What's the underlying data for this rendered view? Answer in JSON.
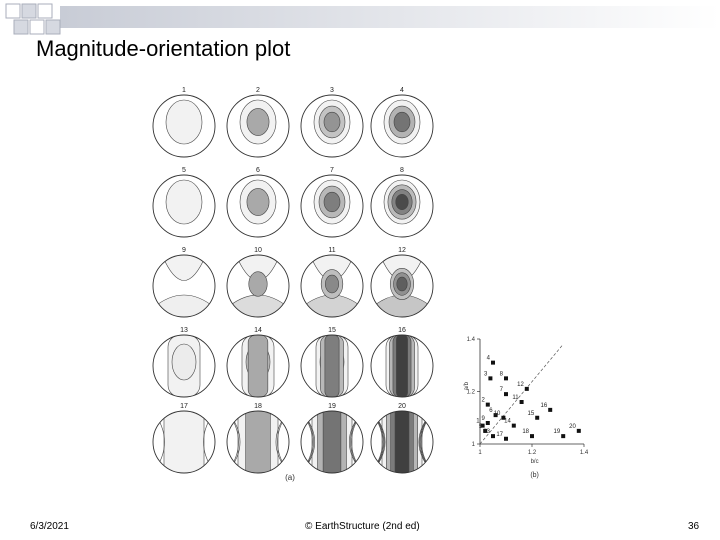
{
  "slide": {
    "title": "Magnitude-orientation plot",
    "footer_date": "6/3/2021",
    "footer_copyright": "© EarthStructure (2nd ed)",
    "page_number": "36"
  },
  "figure_a": {
    "panel_label": "(a)",
    "stereonets": [
      {
        "label": "1",
        "shape": "teardrop",
        "darkness": 0.0
      },
      {
        "label": "2",
        "shape": "teardrop",
        "darkness": 0.35
      },
      {
        "label": "3",
        "shape": "teardrop",
        "darkness": 0.45
      },
      {
        "label": "4",
        "shape": "teardrop",
        "darkness": 0.6
      },
      {
        "label": "5",
        "shape": "teardrop",
        "darkness": 0.0
      },
      {
        "label": "6",
        "shape": "teardrop",
        "darkness": 0.35
      },
      {
        "label": "7",
        "shape": "teardrop",
        "darkness": 0.55
      },
      {
        "label": "8",
        "shape": "teardrop",
        "darkness": 0.8
      },
      {
        "label": "9",
        "shape": "girdle",
        "darkness": 0.05
      },
      {
        "label": "10",
        "shape": "girdle",
        "darkness": 0.35
      },
      {
        "label": "11",
        "shape": "girdle",
        "darkness": 0.5
      },
      {
        "label": "12",
        "shape": "girdle",
        "darkness": 0.7
      },
      {
        "label": "13",
        "shape": "column",
        "darkness": 0.05
      },
      {
        "label": "14",
        "shape": "column",
        "darkness": 0.35
      },
      {
        "label": "15",
        "shape": "column",
        "darkness": 0.55
      },
      {
        "label": "16",
        "shape": "column",
        "darkness": 0.85
      },
      {
        "label": "17",
        "shape": "band",
        "darkness": 0.0
      },
      {
        "label": "18",
        "shape": "band",
        "darkness": 0.35
      },
      {
        "label": "19",
        "shape": "band",
        "darkness": 0.6
      },
      {
        "label": "20",
        "shape": "band",
        "darkness": 0.85
      }
    ]
  },
  "chart_data": {
    "type": "scatter",
    "panel_label": "(b)",
    "xlabel": "b/c",
    "ylabel": "a/b",
    "xlim": [
      1.0,
      1.4
    ],
    "ylim": [
      1.0,
      1.4
    ],
    "x_ticks": [
      "1",
      "1.2",
      "1.4"
    ],
    "y_ticks": [
      "1",
      "1.2",
      "1.4"
    ],
    "reference_line": "y = x (dashed)",
    "points": [
      {
        "label": "1",
        "x": 1.01,
        "y": 1.07
      },
      {
        "label": "2",
        "x": 1.03,
        "y": 1.15
      },
      {
        "label": "3",
        "x": 1.04,
        "y": 1.25
      },
      {
        "label": "4",
        "x": 1.05,
        "y": 1.31
      },
      {
        "label": "5",
        "x": 1.02,
        "y": 1.05
      },
      {
        "label": "6",
        "x": 1.06,
        "y": 1.11
      },
      {
        "label": "7",
        "x": 1.1,
        "y": 1.19
      },
      {
        "label": "8",
        "x": 1.1,
        "y": 1.25
      },
      {
        "label": "9",
        "x": 1.03,
        "y": 1.08
      },
      {
        "label": "10",
        "x": 1.09,
        "y": 1.1
      },
      {
        "label": "11",
        "x": 1.16,
        "y": 1.16
      },
      {
        "label": "12",
        "x": 1.18,
        "y": 1.21
      },
      {
        "label": "13",
        "x": 1.05,
        "y": 1.03
      },
      {
        "label": "14",
        "x": 1.13,
        "y": 1.07
      },
      {
        "label": "15",
        "x": 1.22,
        "y": 1.1
      },
      {
        "label": "16",
        "x": 1.27,
        "y": 1.13
      },
      {
        "label": "17",
        "x": 1.1,
        "y": 1.02
      },
      {
        "label": "18",
        "x": 1.2,
        "y": 1.03
      },
      {
        "label": "19",
        "x": 1.32,
        "y": 1.03
      },
      {
        "label": "20",
        "x": 1.38,
        "y": 1.05
      }
    ]
  }
}
